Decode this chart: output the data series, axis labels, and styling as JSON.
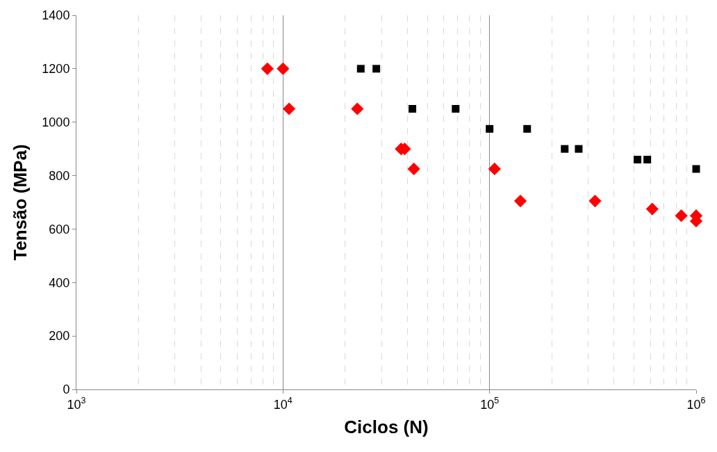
{
  "chart_data": {
    "type": "scatter",
    "xlabel": "Ciclos (N)",
    "ylabel": "Tensão (MPa)",
    "log": "x",
    "xlim": [
      1000,
      1000000
    ],
    "ylim": [
      0,
      1400
    ],
    "xticks": [
      {
        "value": 1000,
        "label": "10$^{3}$"
      },
      {
        "value": 10000,
        "label": "10$^{4}$"
      },
      {
        "value": 100000,
        "label": "10$^{5}$"
      },
      {
        "value": 1000000,
        "label": "10$^{6}$"
      }
    ],
    "yticks": [
      0,
      200,
      400,
      600,
      800,
      1000,
      1200,
      1400
    ],
    "grid": "x",
    "series": [
      {
        "color": "#ff0000",
        "marker": "diamond",
        "x": [
          8400,
          10000,
          10700,
          22900,
          37300,
          38800,
          43000,
          105700,
          141000,
          324000,
          613000,
          847000,
          1000000,
          1000000
        ],
        "values": [
          1200,
          1200,
          1050,
          1050,
          900,
          900,
          825,
          825,
          705,
          705,
          675,
          650,
          650,
          630
        ]
      },
      {
        "color": "#000000",
        "marker": "square",
        "x": [
          23800,
          28300,
          42300,
          68500,
          100000,
          152000,
          231000,
          270000,
          520000,
          580000,
          1000000
        ],
        "values": [
          1200,
          1200,
          1050,
          1050,
          975,
          975,
          900,
          900,
          860,
          860,
          825
        ]
      }
    ]
  }
}
